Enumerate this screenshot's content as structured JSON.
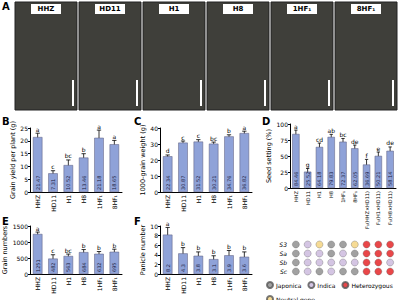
{
  "photo_panel": {
    "panel": "A",
    "labels": [
      "HHZ",
      "HD11",
      "H1",
      "H8",
      "1HF₁",
      "8HF₁"
    ]
  },
  "chart_data": [
    {
      "panel": "B",
      "type": "bar",
      "y_label": "Grain yield per plant (g)",
      "categories": [
        "HHZ",
        "HD11",
        "H1",
        "H8",
        "1HF₁",
        "8HF₁"
      ],
      "values": [
        21.47,
        7.31,
        10.52,
        13.46,
        21.18,
        18.65
      ],
      "errors": [
        1.5,
        1.0,
        2.0,
        1.5,
        3.0,
        1.5
      ],
      "letters": [
        "a",
        "c",
        "bc",
        "b",
        "a",
        "a"
      ],
      "color": "#8fa2d8",
      "ylim": [
        0,
        25
      ],
      "yticks": [
        0,
        5,
        10,
        15,
        20,
        25
      ],
      "grid": false,
      "data_labels": true
    },
    {
      "panel": "C",
      "type": "bar",
      "y_label": "1000-grain weight (g)",
      "categories": [
        "HHZ",
        "HD11",
        "H1",
        "H8",
        "1HF₁",
        "8HF₁"
      ],
      "values": [
        22.34,
        30.87,
        31.52,
        30.21,
        34.76,
        36.82
      ],
      "errors": [
        0.8,
        1.0,
        1.2,
        1.0,
        1.0,
        1.2
      ],
      "letters": [
        "d",
        "c",
        "c",
        "bc",
        "b",
        "a"
      ],
      "color": "#8fa2d8",
      "ylim": [
        0,
        40
      ],
      "yticks": [
        0,
        10,
        20,
        30,
        40
      ],
      "grid": false,
      "data_labels": true
    },
    {
      "panel": "D",
      "type": "bar",
      "y_label": "Seed setting (%)",
      "categories": [
        "HHZ",
        "HD11",
        "H1",
        "H8",
        "1HF₁",
        "8HF₁",
        "F₁(HHZ×HD11)",
        "F₁(H1×HD11)",
        "F₁(H8×HD11)"
      ],
      "values": [
        84.46,
        25.52,
        64.18,
        79.83,
        72.37,
        62.05,
        36.69,
        50.21,
        58.14
      ],
      "errors": [
        6,
        5,
        6,
        4,
        5,
        5,
        8,
        6,
        6
      ],
      "letters": [
        "a",
        "g",
        "cd",
        "ab",
        "bc",
        "de",
        "f",
        "e",
        "de"
      ],
      "color": "#8fa2d8",
      "ylim": [
        0,
        100
      ],
      "yticks": [
        0,
        25,
        50,
        75,
        100
      ],
      "grid": false,
      "data_labels": true,
      "genotype_rows": [
        "S3",
        "Sa",
        "Sb",
        "Sc"
      ],
      "genotype_legend": [
        {
          "name": "Japonica",
          "color": "#8a8a8a"
        },
        {
          "name": "Indica",
          "color": "#c9b6dc"
        },
        {
          "name": "Heterozygous",
          "color": "#e3191c"
        },
        {
          "name": "Neutral gene",
          "color": "#f4d27a"
        }
      ],
      "genotypes": [
        [
          "Japonica",
          "Indica",
          "Neutral gene",
          "Japonica",
          "Japonica",
          "Neutral gene",
          "Heterozygous",
          "Heterozygous",
          "Heterozygous"
        ],
        [
          "Japonica",
          "Indica",
          "Indica",
          "Japonica",
          "Indica",
          "Japonica",
          "Heterozygous",
          "Heterozygous",
          "Heterozygous"
        ],
        [
          "Japonica",
          "Indica",
          "Indica",
          "Indica",
          "Indica",
          "Indica",
          "Heterozygous",
          "Heterozygous",
          "Indica"
        ],
        [
          "Japonica",
          "Indica",
          "Japonica",
          "Indica",
          "Japonica",
          "Japonica",
          "Heterozygous",
          "Heterozygous",
          "Heterozygous"
        ]
      ]
    },
    {
      "panel": "E",
      "type": "bar",
      "y_label": "Grain numbers",
      "categories": [
        "HHZ",
        "HD11",
        "H1",
        "H8",
        "1HF₁",
        "8HF₁"
      ],
      "values": [
        1251,
        482,
        563,
        684,
        632,
        695
      ],
      "errors": [
        60,
        120,
        60,
        80,
        70,
        80
      ],
      "letters": [
        "a",
        "c",
        "bc",
        "b",
        "b",
        "b"
      ],
      "color": "#8fa2d8",
      "ylim": [
        0,
        1500
      ],
      "yticks": [
        0,
        500,
        1000,
        1500
      ],
      "grid": false,
      "data_labels": true
    },
    {
      "panel": "F",
      "type": "bar",
      "y_label": "Panicle number",
      "categories": [
        "HHZ",
        "HD11",
        "H1",
        "H8",
        "1HF₁",
        "8HF₁"
      ],
      "values": [
        8.2,
        4.3,
        3.8,
        3.1,
        3.9,
        3.6
      ],
      "errors": [
        1.5,
        1.2,
        0.8,
        0.7,
        1.0,
        1.0
      ],
      "letters": [
        "a",
        "b",
        "b",
        "b",
        "b",
        "b"
      ],
      "color": "#8fa2d8",
      "ylim": [
        0,
        10
      ],
      "yticks": [
        0,
        2,
        4,
        6,
        8,
        10
      ],
      "grid": false,
      "data_labels": true
    }
  ]
}
